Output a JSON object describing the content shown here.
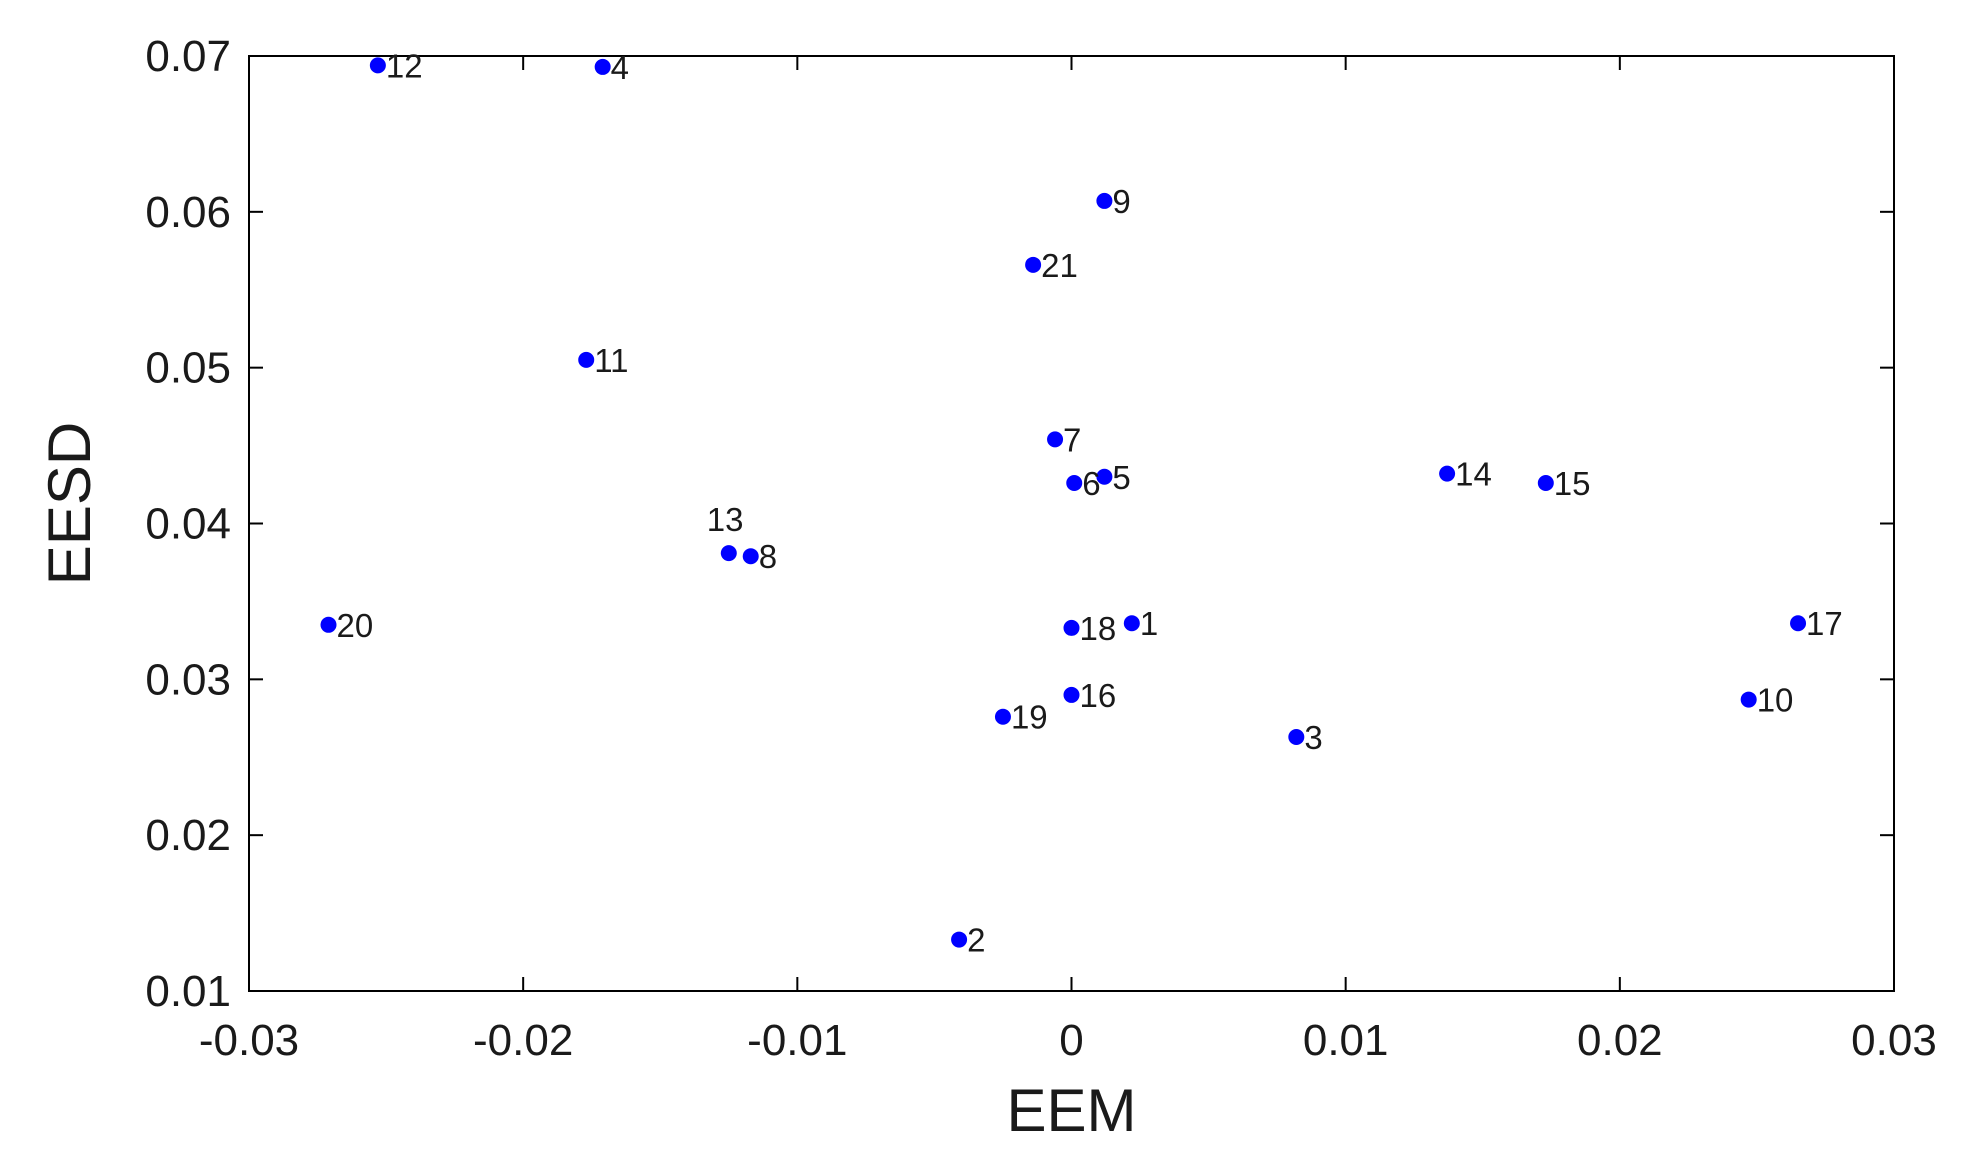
{
  "chart_data": {
    "type": "scatter",
    "title": "",
    "xlabel": "EEM",
    "ylabel": "EESD",
    "xlim": [
      -0.03,
      0.03
    ],
    "ylim": [
      0.01,
      0.07
    ],
    "xticks": [
      "-0.03",
      "-0.02",
      "-0.01",
      "0",
      "0.01",
      "0.02",
      "0.03"
    ],
    "yticks": [
      "0.01",
      "0.02",
      "0.03",
      "0.04",
      "0.05",
      "0.06",
      "0.07"
    ],
    "grid": false,
    "marker_color": "#0000ff",
    "points": [
      {
        "label": "1",
        "x": 0.0022,
        "y": 0.0336
      },
      {
        "label": "2",
        "x": -0.0041,
        "y": 0.0133
      },
      {
        "label": "3",
        "x": 0.0082,
        "y": 0.0263
      },
      {
        "label": "4",
        "x": -0.0171,
        "y": 0.0693
      },
      {
        "label": "5",
        "x": 0.0012,
        "y": 0.043
      },
      {
        "label": "6",
        "x": 0.0001,
        "y": 0.0426
      },
      {
        "label": "7",
        "x": -0.0006,
        "y": 0.0454
      },
      {
        "label": "8",
        "x": -0.0117,
        "y": 0.0379
      },
      {
        "label": "9",
        "x": 0.0012,
        "y": 0.0607
      },
      {
        "label": "10",
        "x": 0.0247,
        "y": 0.0287
      },
      {
        "label": "11",
        "x": -0.0177,
        "y": 0.0505
      },
      {
        "label": "12",
        "x": -0.0253,
        "y": 0.0694
      },
      {
        "label": "13",
        "x": -0.0125,
        "y": 0.0381
      },
      {
        "label": "14",
        "x": 0.0137,
        "y": 0.0432
      },
      {
        "label": "15",
        "x": 0.0173,
        "y": 0.0426
      },
      {
        "label": "16",
        "x": 0.0,
        "y": 0.029
      },
      {
        "label": "17",
        "x": 0.0265,
        "y": 0.0336
      },
      {
        "label": "18",
        "x": 0.0,
        "y": 0.0333
      },
      {
        "label": "19",
        "x": -0.0025,
        "y": 0.0276
      },
      {
        "label": "20",
        "x": -0.0271,
        "y": 0.0335
      },
      {
        "label": "21",
        "x": -0.0014,
        "y": 0.0566
      }
    ]
  }
}
